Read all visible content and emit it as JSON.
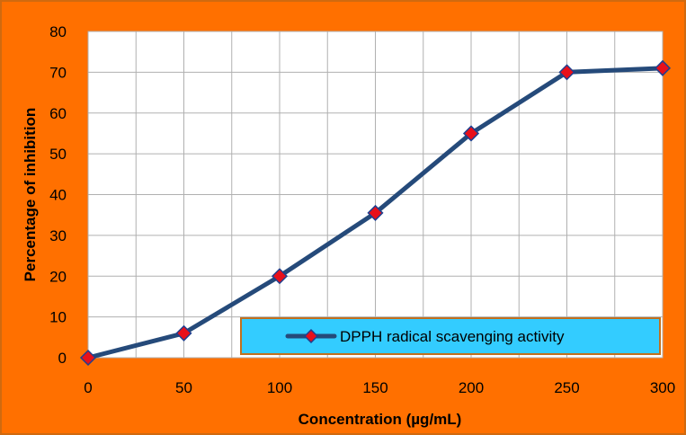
{
  "colors": {
    "frame": "#ff7000",
    "plot_background": "#ffffff",
    "grid": "#b0b0b0",
    "series_line": "#254a7a",
    "marker_fill": "#e8101a",
    "marker_stroke": "#1f3f8f",
    "legend_background": "#33ccff",
    "legend_border": "#c0701e"
  },
  "chart_data": {
    "type": "line",
    "title": "",
    "xlabel": "Concentration (µg/mL)",
    "ylabel": "Percentage of inhibition",
    "x": [
      0,
      50,
      100,
      150,
      200,
      250,
      300
    ],
    "series": [
      {
        "name": "DPPH radical scavenging activity",
        "values": [
          0,
          6,
          20,
          35.5,
          55,
          70,
          71
        ],
        "marker": "diamond"
      }
    ],
    "xlim": [
      0,
      300
    ],
    "ylim": [
      0,
      80
    ],
    "xticks": [
      "0",
      "50",
      "100",
      "150",
      "200",
      "250",
      "300"
    ],
    "yticks": [
      "0",
      "10",
      "20",
      "30",
      "40",
      "50",
      "60",
      "70",
      "80"
    ],
    "grid": true,
    "legend_position": "bottom-right"
  }
}
